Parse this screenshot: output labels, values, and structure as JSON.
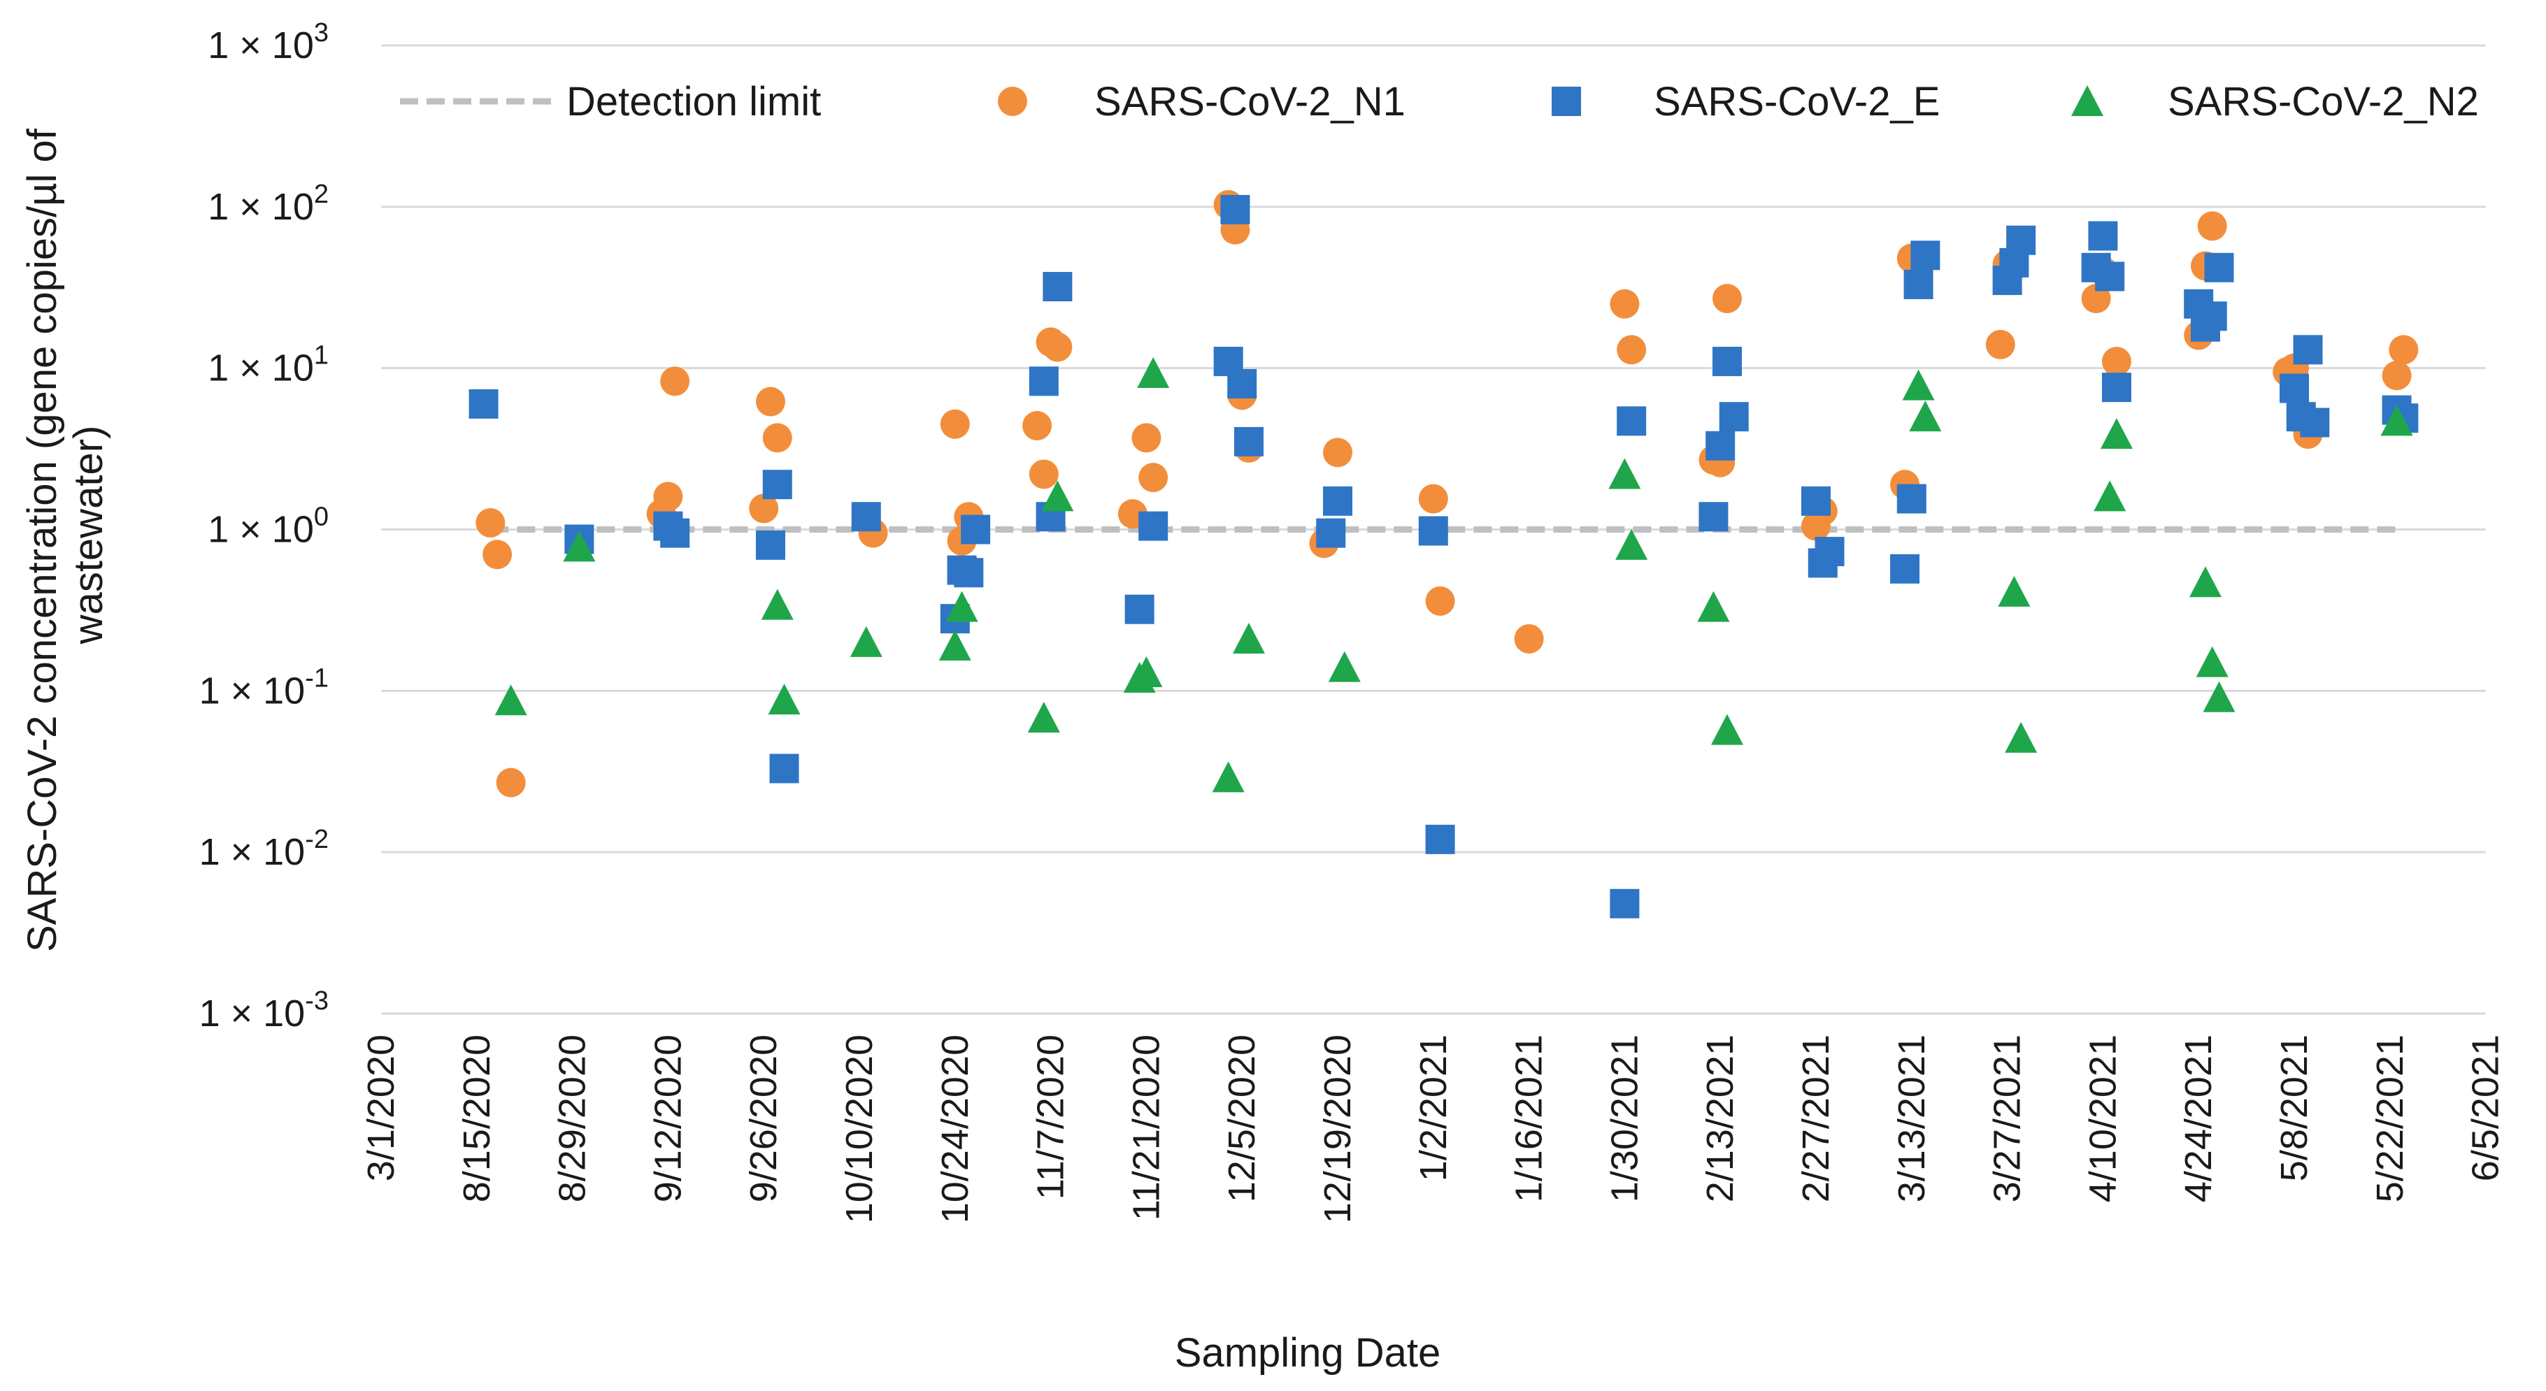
{
  "chart_data": {
    "type": "scatter",
    "xlabel": "Sampling Date",
    "ylabel_lines": [
      "SARS-CoV-2 concentration (gene copies/µl of",
      "wastewater)"
    ],
    "yscale": "log",
    "ylim": [
      0.001,
      1000
    ],
    "y_ticks": [
      {
        "value": 0.001,
        "base": "1 × 10",
        "exp": "-3"
      },
      {
        "value": 0.01,
        "base": "1 × 10",
        "exp": "-2"
      },
      {
        "value": 0.1,
        "base": "1 × 10",
        "exp": "-1"
      },
      {
        "value": 1,
        "base": "1 × 10",
        "exp": "0"
      },
      {
        "value": 10,
        "base": "1 × 10",
        "exp": "1"
      },
      {
        "value": 100,
        "base": "1 × 10",
        "exp": "2"
      },
      {
        "value": 1000,
        "base": "1 × 10",
        "exp": "3"
      }
    ],
    "x_ticks": [
      "3/1/2020",
      "8/15/2020",
      "8/29/2020",
      "9/12/2020",
      "9/26/2020",
      "10/10/2020",
      "10/24/2020",
      "11/7/2020",
      "11/21/2020",
      "12/5/2020",
      "12/19/2020",
      "1/2/2021",
      "1/16/2021",
      "1/30/2021",
      "2/13/2021",
      "2/27/2021",
      "3/13/2021",
      "3/27/2021",
      "4/10/2021",
      "4/24/2021",
      "5/8/2021",
      "5/22/2021",
      "6/5/2021"
    ],
    "grid": true,
    "legend_position": "top",
    "detection_limit": {
      "name": "Detection limit",
      "value": 1,
      "x_range": [
        "8/17/2020",
        "5/23/2021"
      ],
      "color": "#bfbfbf"
    },
    "series": [
      {
        "name": "SARS-CoV-2_N1",
        "marker": "circle",
        "color": "#f28e3b",
        "points": [
          [
            "8/17/2020",
            1.1
          ],
          [
            "8/18/2020",
            0.7
          ],
          [
            "8/20/2020",
            0.027
          ],
          [
            "9/11/2020",
            1.25
          ],
          [
            "9/12/2020",
            1.6
          ],
          [
            "9/13/2020",
            8.3
          ],
          [
            "9/26/2020",
            1.35
          ],
          [
            "9/27/2020",
            6.2
          ],
          [
            "9/28/2020",
            3.7
          ],
          [
            "10/12/2020",
            0.95
          ],
          [
            "10/24/2020",
            4.5
          ],
          [
            "10/25/2020",
            0.85
          ],
          [
            "10/26/2020",
            1.2
          ],
          [
            "11/5/2020",
            4.4
          ],
          [
            "11/6/2020",
            2.2
          ],
          [
            "11/7/2020",
            14.5
          ],
          [
            "11/8/2020",
            13.5
          ],
          [
            "11/19/2020",
            1.25
          ],
          [
            "11/21/2020",
            3.7
          ],
          [
            "11/22/2020",
            2.1
          ],
          [
            "12/3/2020",
            103
          ],
          [
            "12/4/2020",
            72
          ],
          [
            "12/5/2020",
            6.8
          ],
          [
            "12/6/2020",
            3.2
          ],
          [
            "12/17/2020",
            0.82
          ],
          [
            "12/19/2020",
            3.0
          ],
          [
            "1/2/2021",
            1.55
          ],
          [
            "1/3/2021",
            0.36
          ],
          [
            "1/16/2021",
            0.21
          ],
          [
            "1/30/2021",
            25
          ],
          [
            "1/31/2021",
            13
          ],
          [
            "2/12/2021",
            2.7
          ],
          [
            "2/13/2021",
            2.6
          ],
          [
            "2/14/2021",
            27
          ],
          [
            "2/27/2021",
            1.05
          ],
          [
            "2/28/2021",
            1.3
          ],
          [
            "3/12/2021",
            1.9
          ],
          [
            "3/13/2021",
            48
          ],
          [
            "3/14/2021",
            37
          ],
          [
            "3/26/2021",
            14
          ],
          [
            "3/27/2021",
            44
          ],
          [
            "3/28/2021",
            43
          ],
          [
            "4/9/2021",
            27
          ],
          [
            "4/10/2021",
            40
          ],
          [
            "4/12/2021",
            11
          ],
          [
            "4/24/2021",
            16
          ],
          [
            "4/25/2021",
            43
          ],
          [
            "4/26/2021",
            76
          ],
          [
            "5/7/2021",
            9.5
          ],
          [
            "5/8/2021",
            10
          ],
          [
            "5/9/2021",
            4.8
          ],
          [
            "5/10/2021",
            3.9
          ],
          [
            "5/23/2021",
            9.0
          ],
          [
            "5/24/2021",
            13
          ]
        ]
      },
      {
        "name": "SARS-CoV-2_E",
        "marker": "square",
        "color": "#2e75c6",
        "points": [
          [
            "8/16/2020",
            6.0
          ],
          [
            "8/30/2020",
            0.87
          ],
          [
            "9/12/2020",
            1.05
          ],
          [
            "9/13/2020",
            0.95
          ],
          [
            "9/27/2020",
            0.8
          ],
          [
            "9/28/2020",
            1.9
          ],
          [
            "9/29/2020",
            0.033
          ],
          [
            "10/11/2020",
            1.2
          ],
          [
            "10/24/2020",
            0.28
          ],
          [
            "10/25/2020",
            0.56
          ],
          [
            "10/26/2020",
            0.54
          ],
          [
            "10/27/2020",
            1.0
          ],
          [
            "11/6/2020",
            8.3
          ],
          [
            "11/7/2020",
            1.2
          ],
          [
            "11/8/2020",
            32
          ],
          [
            "11/20/2020",
            0.32
          ],
          [
            "11/22/2020",
            1.05
          ],
          [
            "12/3/2020",
            11
          ],
          [
            "12/4/2020",
            96
          ],
          [
            "12/5/2020",
            8.0
          ],
          [
            "12/6/2020",
            3.5
          ],
          [
            "12/18/2020",
            0.95
          ],
          [
            "12/19/2020",
            1.5
          ],
          [
            "1/2/2021",
            0.98
          ],
          [
            "1/3/2021",
            0.012
          ],
          [
            "1/30/2021",
            0.0048
          ],
          [
            "1/31/2021",
            4.7
          ],
          [
            "2/12/2021",
            1.2
          ],
          [
            "2/13/2021",
            3.3
          ],
          [
            "2/14/2021",
            11
          ],
          [
            "2/15/2021",
            5.0
          ],
          [
            "2/27/2021",
            1.5
          ],
          [
            "2/28/2021",
            0.62
          ],
          [
            "3/1/2021",
            0.73
          ],
          [
            "3/12/2021",
            0.57
          ],
          [
            "3/13/2021",
            1.55
          ],
          [
            "3/14/2021",
            33
          ],
          [
            "3/15/2021",
            50
          ],
          [
            "3/27/2021",
            35
          ],
          [
            "3/28/2021",
            45
          ],
          [
            "3/29/2021",
            62
          ],
          [
            "4/9/2021",
            42
          ],
          [
            "4/10/2021",
            66
          ],
          [
            "4/11/2021",
            37
          ],
          [
            "4/12/2021",
            7.6
          ],
          [
            "4/24/2021",
            25
          ],
          [
            "4/25/2021",
            18
          ],
          [
            "4/26/2021",
            21
          ],
          [
            "4/27/2021",
            42
          ],
          [
            "5/8/2021",
            7.5
          ],
          [
            "5/9/2021",
            5.0
          ],
          [
            "5/10/2021",
            13
          ],
          [
            "5/11/2021",
            4.6
          ],
          [
            "5/23/2021",
            5.5
          ],
          [
            "5/24/2021",
            4.9
          ]
        ]
      },
      {
        "name": "SARS-CoV-2_N2",
        "marker": "triangle",
        "color": "#1fa64a",
        "points": [
          [
            "8/20/2020",
            0.087
          ],
          [
            "8/30/2020",
            0.78
          ],
          [
            "9/28/2020",
            0.34
          ],
          [
            "9/29/2020",
            0.088
          ],
          [
            "10/11/2020",
            0.2
          ],
          [
            "10/24/2020",
            0.19
          ],
          [
            "10/25/2020",
            0.33
          ],
          [
            "11/6/2020",
            0.068
          ],
          [
            "11/8/2020",
            1.6
          ],
          [
            "11/20/2020",
            0.12
          ],
          [
            "11/21/2020",
            0.13
          ],
          [
            "11/22/2020",
            9.3
          ],
          [
            "12/3/2020",
            0.029
          ],
          [
            "12/6/2020",
            0.21
          ],
          [
            "12/20/2020",
            0.14
          ],
          [
            "1/30/2021",
            2.2
          ],
          [
            "1/31/2021",
            0.8
          ],
          [
            "2/12/2021",
            0.33
          ],
          [
            "2/14/2021",
            0.057
          ],
          [
            "3/14/2021",
            7.8
          ],
          [
            "3/15/2021",
            5.0
          ],
          [
            "3/28/2021",
            0.41
          ],
          [
            "3/29/2021",
            0.051
          ],
          [
            "4/11/2021",
            1.6
          ],
          [
            "4/12/2021",
            3.9
          ],
          [
            "4/25/2021",
            0.47
          ],
          [
            "4/26/2021",
            0.15
          ],
          [
            "4/27/2021",
            0.091
          ],
          [
            "5/23/2021",
            4.7
          ]
        ]
      }
    ]
  }
}
